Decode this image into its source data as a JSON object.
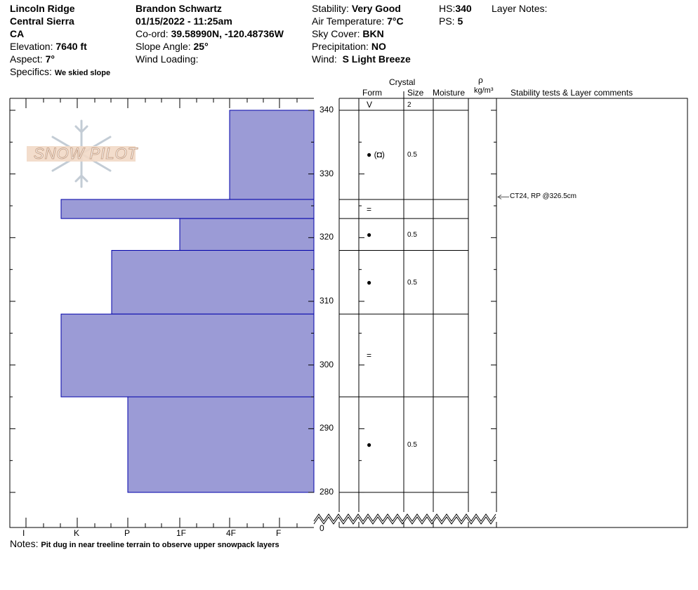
{
  "header": {
    "location": "Lincoln Ridge",
    "range": "Central Sierra",
    "state": "CA",
    "elevation_label": "Elevation:",
    "elevation": "7640 ft",
    "aspect_label": "Aspect:",
    "aspect": "7°",
    "specifics_label": "Specifics:",
    "specifics": "We skied slope",
    "observer": "Brandon Schwartz",
    "datetime": "01/15/2022 - 11:25am",
    "coord_label": "Co-ord:",
    "coord": "39.58990N, -120.48736W",
    "slope_label": "Slope Angle:",
    "slope": "25°",
    "wind_loading_label": "Wind Loading:",
    "stability_label": "Stability:",
    "stability": "Very Good",
    "air_temp_label": "Air Temperature:",
    "air_temp": "7°C",
    "sky_label": "Sky Cover:",
    "sky": "BKN",
    "precip_label": "Precipitation:",
    "precip": "NO",
    "wind_label": "Wind:",
    "wind": "S Light Breeze",
    "hs_label": "HS:",
    "hs": "340",
    "ps_label": "PS:",
    "ps": "5",
    "layer_notes_label": "Layer Notes:"
  },
  "logo": "SNOW PILOT",
  "table_headers": {
    "crystal": "Crystal",
    "form": "Form",
    "size": "Size",
    "moisture": "Moisture",
    "rho": "ρ",
    "density_unit": "kg/m³",
    "comments": "Stability tests & Layer comments"
  },
  "surface": {
    "form": "V",
    "size": "2"
  },
  "depth_labels": [
    "340",
    "330",
    "320",
    "310",
    "300",
    "290",
    "280",
    "0"
  ],
  "hardness_labels": [
    "I",
    "K",
    "P",
    "1F",
    "4F",
    "F"
  ],
  "layers": [
    {
      "top": 340,
      "bottom": 326,
      "hardness": "4F",
      "form": "● (◘)",
      "size": "0.5"
    },
    {
      "top": 326,
      "bottom": 323,
      "hardness": "K-",
      "form": "=",
      "size": ""
    },
    {
      "top": 323,
      "bottom": 318,
      "hardness": "1F",
      "form": "●",
      "size": "0.5"
    },
    {
      "top": 318,
      "bottom": 308,
      "hardness": "P-",
      "form": "●",
      "size": "0.5"
    },
    {
      "top": 308,
      "bottom": 295,
      "hardness": "K-",
      "form": "=",
      "size": ""
    },
    {
      "top": 295,
      "bottom": 280,
      "hardness": "P",
      "form": "●",
      "size": "0.5"
    }
  ],
  "stability_tests": [
    {
      "depth": 326.5,
      "text": "CT24, RP @326.5cm"
    }
  ],
  "notes_label": "Notes:",
  "notes": "Pit dug in near treeline terrain to observe upper snowpack layers",
  "colors": {
    "layer_fill": "#9b9bd6",
    "layer_stroke": "#0000aa"
  }
}
